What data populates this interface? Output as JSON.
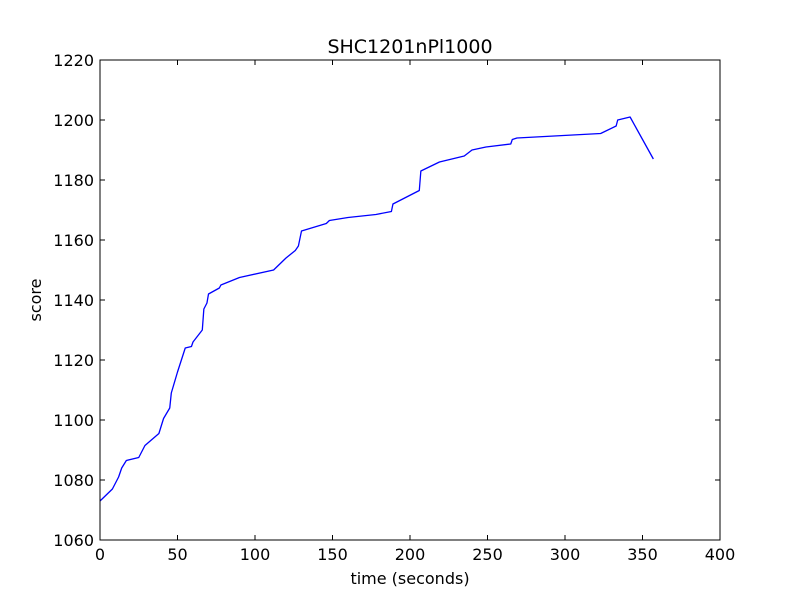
{
  "chart_data": {
    "type": "line",
    "title": "SHC1201nPl1000",
    "xlabel": "time (seconds)",
    "ylabel": "score",
    "xlim": [
      0,
      400
    ],
    "ylim": [
      1060,
      1220
    ],
    "x_ticks": [
      "0",
      "50",
      "100",
      "150",
      "200",
      "250",
      "300",
      "350",
      "400"
    ],
    "y_ticks": [
      "1060",
      "1080",
      "1100",
      "1120",
      "1140",
      "1160",
      "1180",
      "1200",
      "1220"
    ],
    "grid": false,
    "legend": "none",
    "line_color": "#0000ff",
    "series": [
      {
        "x": [
          0,
          4,
          8,
          12,
          14,
          17,
          25,
          29,
          38,
          41,
          45,
          46,
          50,
          55,
          59,
          60,
          66,
          67,
          69,
          70,
          77,
          78,
          90,
          112,
          120,
          126,
          128,
          130,
          146,
          148,
          160,
          178,
          188,
          189,
          206,
          207,
          219,
          235,
          240,
          249,
          265,
          266,
          269,
          323,
          333,
          334,
          342,
          357
        ],
        "y": [
          1073,
          1075,
          1077,
          1081,
          1084,
          1086.5,
          1087.5,
          1091.5,
          1095.5,
          1100.5,
          1104,
          1109,
          1116,
          1124,
          1124.5,
          1126,
          1130,
          1137,
          1139,
          1142,
          1144,
          1145,
          1147.5,
          1150,
          1154,
          1156.5,
          1158,
          1163,
          1165.5,
          1166.5,
          1167.5,
          1168.5,
          1169.5,
          1172,
          1176.5,
          1183,
          1186,
          1188,
          1190,
          1191,
          1192,
          1193.5,
          1194,
          1195.5,
          1198,
          1200,
          1201,
          1187
        ]
      }
    ]
  }
}
